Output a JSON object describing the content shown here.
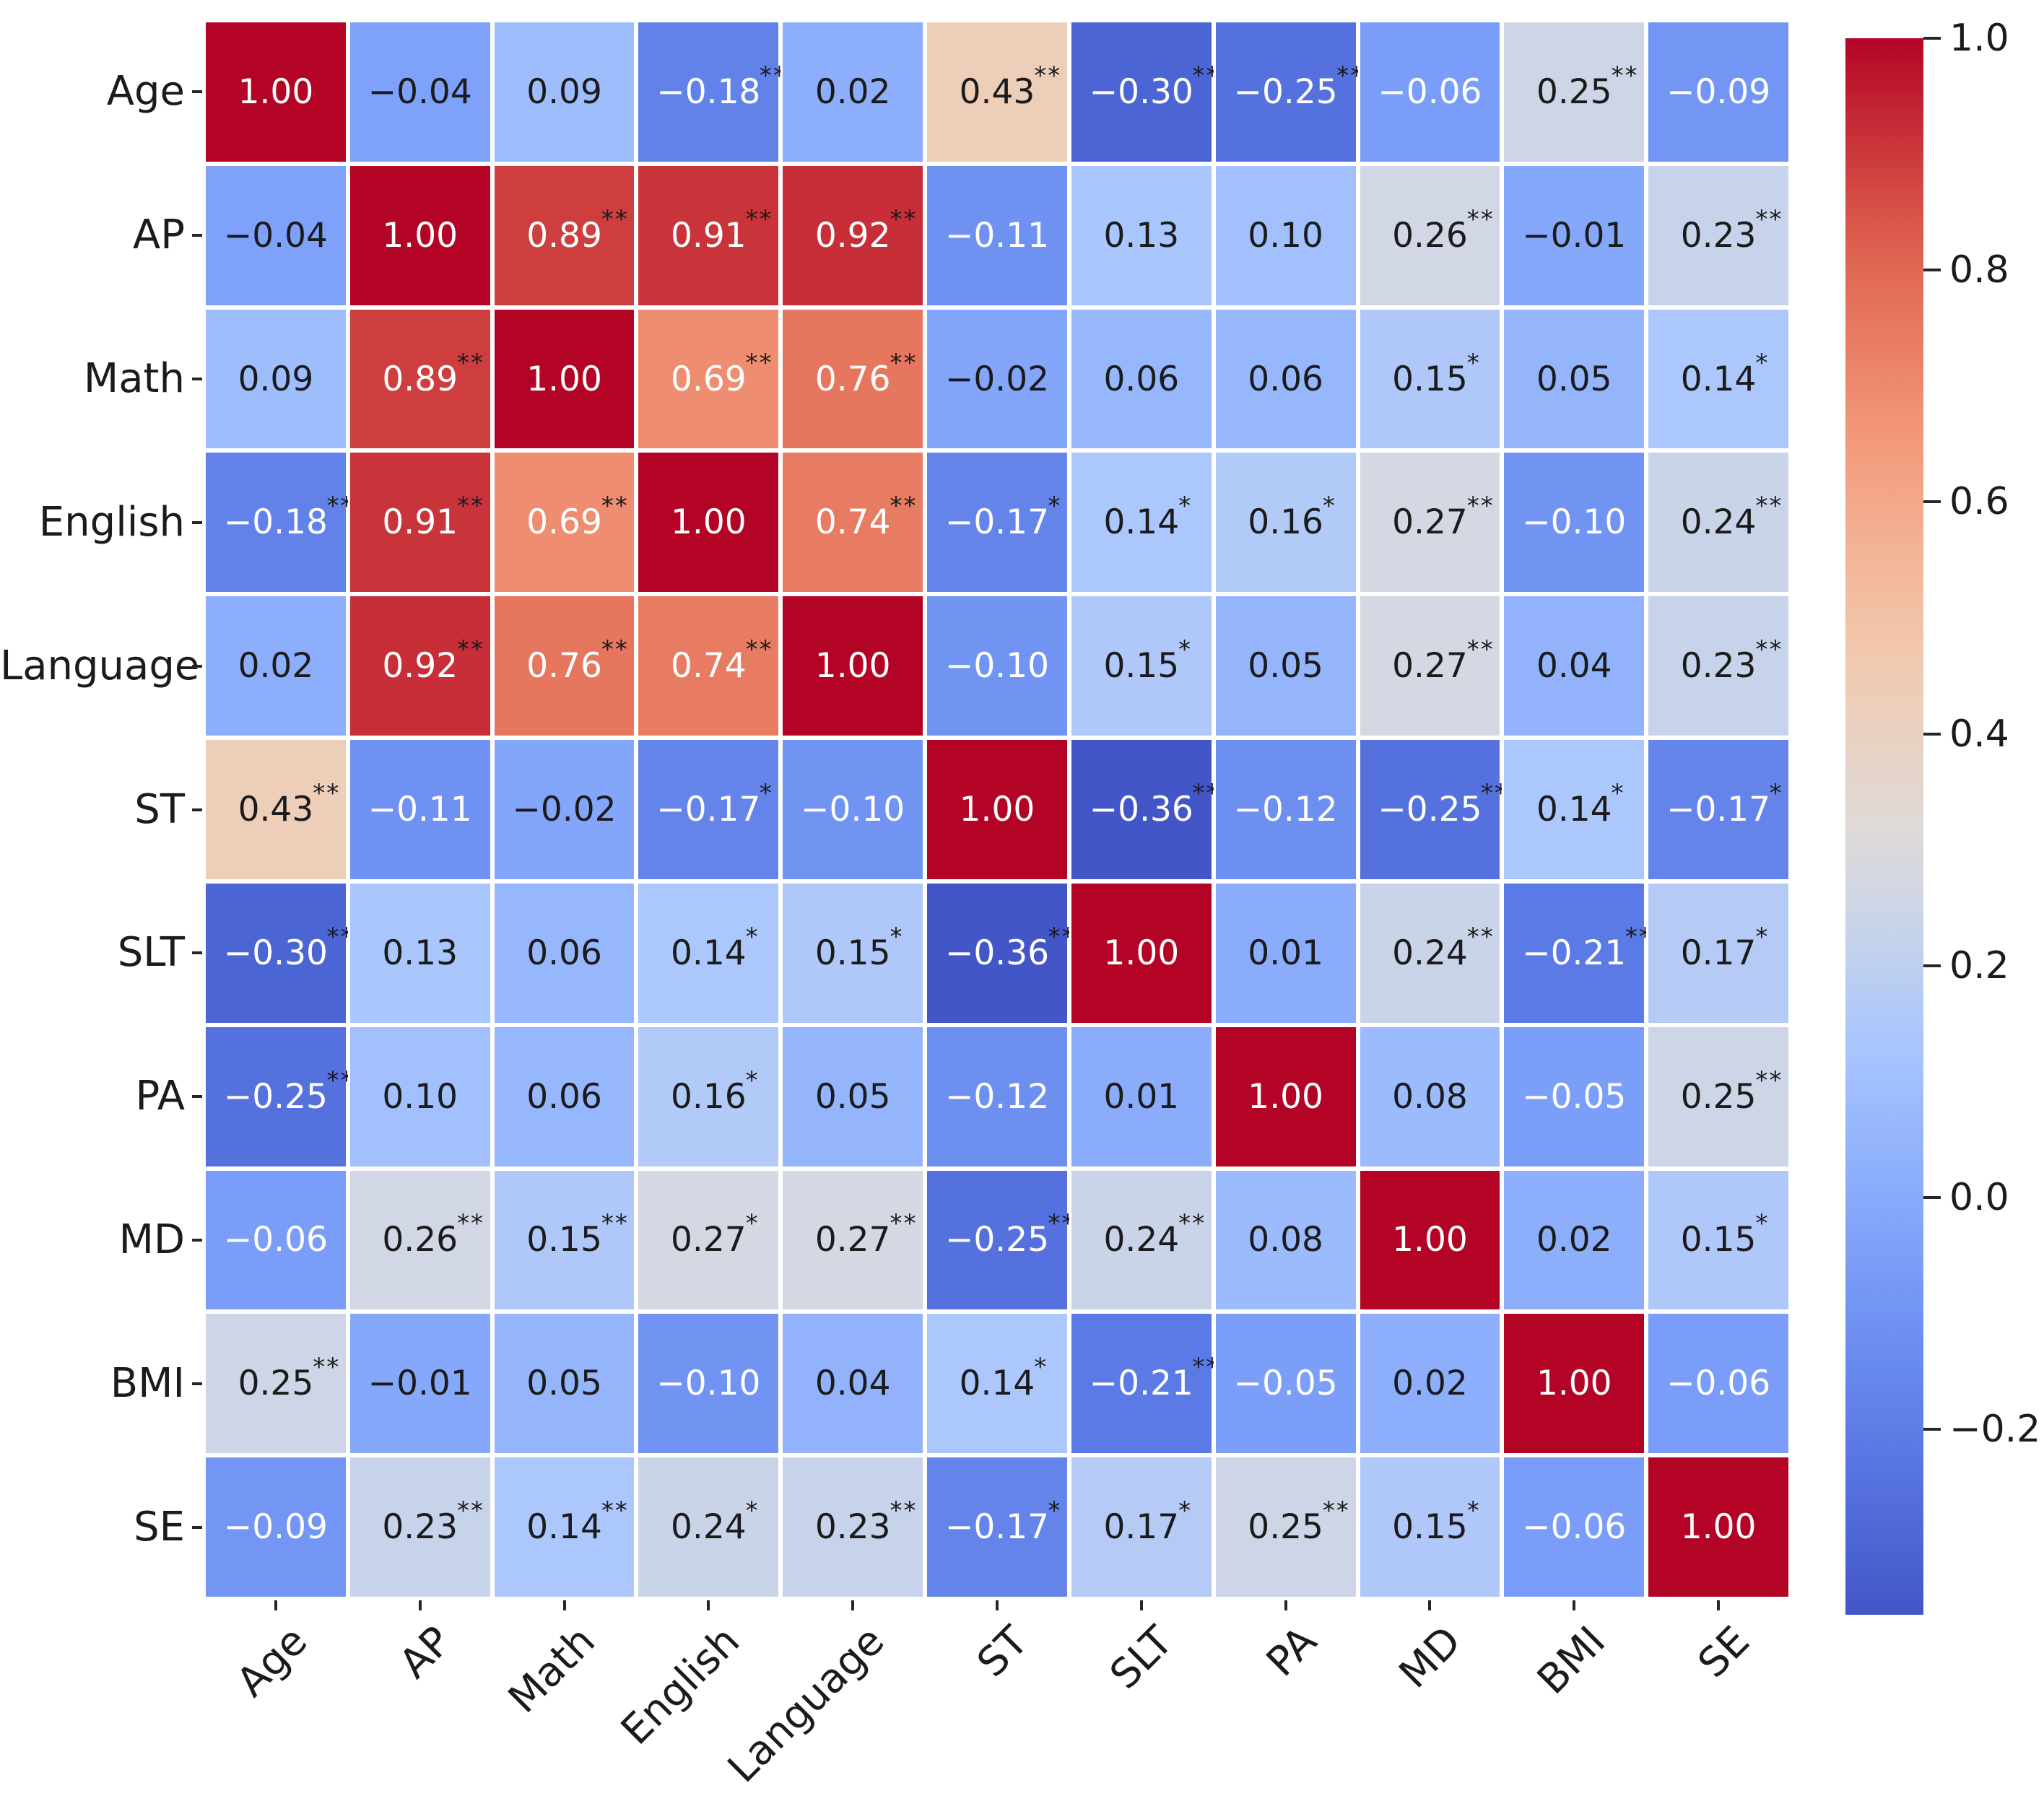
{
  "chart_data": {
    "type": "heatmap",
    "title": "",
    "variables": [
      "Age",
      "AP",
      "Math",
      "English",
      "Language",
      "ST",
      "SLT",
      "PA",
      "MD",
      "BMI",
      "SE"
    ],
    "y_tick_labels": [
      "Age",
      "AP",
      "Math",
      "English",
      "Language",
      "ST",
      "SLT",
      "PA",
      "MD",
      "BMI",
      "SE"
    ],
    "x_tick_labels": [
      "Age",
      "AP",
      "Math",
      "English",
      "Language",
      "ST",
      "SLT",
      "PA",
      "MD",
      "BMI",
      "SE"
    ],
    "values": [
      [
        1.0,
        -0.04,
        0.09,
        -0.18,
        0.02,
        0.43,
        -0.3,
        -0.25,
        -0.06,
        0.25,
        -0.09
      ],
      [
        -0.04,
        1.0,
        0.89,
        0.91,
        0.92,
        -0.11,
        0.13,
        0.1,
        0.26,
        -0.01,
        0.23
      ],
      [
        0.09,
        0.89,
        1.0,
        0.69,
        0.76,
        -0.02,
        0.06,
        0.06,
        0.15,
        0.05,
        0.14
      ],
      [
        -0.18,
        0.91,
        0.69,
        1.0,
        0.74,
        -0.17,
        0.14,
        0.16,
        0.27,
        -0.1,
        0.24
      ],
      [
        0.02,
        0.92,
        0.76,
        0.74,
        1.0,
        -0.1,
        0.15,
        0.05,
        0.27,
        0.04,
        0.23
      ],
      [
        0.43,
        -0.11,
        -0.02,
        -0.17,
        -0.1,
        1.0,
        -0.36,
        -0.12,
        -0.25,
        0.14,
        -0.17
      ],
      [
        -0.3,
        0.13,
        0.06,
        0.14,
        0.15,
        -0.36,
        1.0,
        0.01,
        0.24,
        -0.21,
        0.17
      ],
      [
        -0.25,
        0.1,
        0.06,
        0.16,
        0.05,
        -0.12,
        0.01,
        1.0,
        0.08,
        -0.05,
        0.25
      ],
      [
        -0.06,
        0.26,
        0.15,
        0.27,
        0.27,
        -0.25,
        0.24,
        0.08,
        1.0,
        0.02,
        0.15
      ],
      [
        0.25,
        -0.01,
        0.05,
        -0.1,
        0.04,
        0.14,
        -0.21,
        -0.05,
        0.02,
        1.0,
        -0.06
      ],
      [
        -0.09,
        0.23,
        0.14,
        0.24,
        0.23,
        -0.17,
        0.17,
        0.25,
        0.15,
        -0.06,
        1.0
      ]
    ],
    "significance_stars": [
      [
        "",
        "",
        "",
        "**",
        "",
        "**",
        "**",
        "**",
        "",
        "**",
        ""
      ],
      [
        "",
        "",
        "**",
        "**",
        "**",
        "",
        "",
        "",
        "**",
        "",
        "**"
      ],
      [
        "",
        "**",
        "",
        "**",
        "**",
        "",
        "",
        "",
        "*",
        "",
        "*"
      ],
      [
        "**",
        "**",
        "**",
        "",
        "**",
        "*",
        "*",
        "*",
        "**",
        "",
        "**"
      ],
      [
        "",
        "**",
        "**",
        "**",
        "",
        "",
        "*",
        "",
        "**",
        "",
        "**"
      ],
      [
        "**",
        "",
        "",
        "*",
        "",
        "",
        "**",
        "",
        "**",
        "*",
        "*"
      ],
      [
        "**",
        "",
        "",
        "*",
        "*",
        "**",
        "",
        "",
        "**",
        "**",
        "*"
      ],
      [
        "**",
        "",
        "",
        "*",
        "",
        "",
        "",
        "",
        "",
        "",
        "**"
      ],
      [
        "",
        "**",
        "**",
        "*",
        "**",
        "**",
        "**",
        "",
        "",
        "",
        "*"
      ],
      [
        "**",
        "",
        "",
        "",
        "",
        "*",
        "**",
        "",
        "",
        "",
        ""
      ],
      [
        "",
        "**",
        "**",
        "*",
        "**",
        "*",
        "*",
        "**",
        "*",
        "",
        ""
      ]
    ],
    "value_format": "two-decimals, unicode minus",
    "colorbar": {
      "position": "right",
      "colormap": "coolwarm",
      "vmin": -0.36,
      "vmax": 1.0,
      "tick_values": [
        1.0,
        0.8,
        0.6,
        0.4,
        0.2,
        0.0,
        -0.2
      ],
      "tick_labels": [
        "1.0",
        "0.8",
        "0.6",
        "0.4",
        "0.2",
        "0.0",
        "−0.2"
      ]
    },
    "layout_hints": {
      "grid_gap": "white gridlines between cells",
      "x_label_rotation_deg": 45,
      "annotation_rule": "white numbers on dark blue (<= -0.05) and dark red (>= 0.69) cells; stars always black superscripts"
    }
  },
  "colors": {
    "background": "#ffffff",
    "colormap_min_blue": "#3b4cc0",
    "colormap_center_gray": "#dddcdc",
    "colormap_max_red": "#b40426",
    "annotation_dark": "#1b1b1b",
    "annotation_light": "#ffffff",
    "star_color": "#1b1b1b",
    "tick_color": "#262626"
  }
}
